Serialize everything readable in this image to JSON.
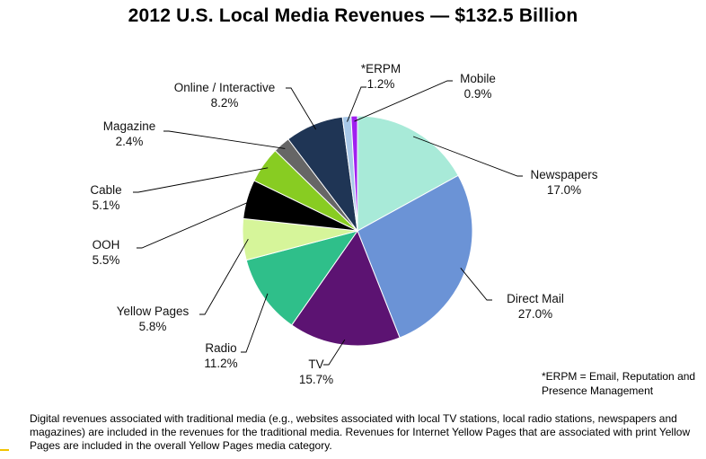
{
  "title": "2012 U.S. Local Media Revenues — $132.5 Billion",
  "footnote": "*ERPM = Email, Reputation and Presence Management",
  "caption": "Digital revenues associated with traditional media (e.g., websites associated with local TV stations, local radio stations, newspapers and magazines) are included in the revenues for the traditional media. Revenues for Internet Yellow Pages that are associated with print Yellow Pages are included in the overall Yellow Pages media category.",
  "chart_data": {
    "type": "pie",
    "title": "2012 U.S. Local Media Revenues — $132.5 Billion",
    "unit": "percent",
    "slices": [
      {
        "name": "Newspapers",
        "value": 17.0,
        "label": "17.0%",
        "color": "#a8ead8"
      },
      {
        "name": "Direct Mail",
        "value": 27.0,
        "label": "27.0%",
        "color": "#6b93d6"
      },
      {
        "name": "TV",
        "value": 15.7,
        "label": "15.7%",
        "color": "#5c1372"
      },
      {
        "name": "Radio",
        "value": 11.2,
        "label": "11.2%",
        "color": "#2fbf8a"
      },
      {
        "name": "Yellow Pages",
        "value": 5.8,
        "label": "5.8%",
        "color": "#d6f59a"
      },
      {
        "name": "OOH",
        "value": 5.5,
        "label": "5.5%",
        "color": "#000000"
      },
      {
        "name": "Cable",
        "value": 5.1,
        "label": "5.1%",
        "color": "#88cc22"
      },
      {
        "name": "Magazine",
        "value": 2.4,
        "label": "2.4%",
        "color": "#666666"
      },
      {
        "name": "Online / Interactive",
        "value": 8.2,
        "label": "8.2%",
        "color": "#1f3555"
      },
      {
        "name": "*ERPM",
        "value": 1.2,
        "label": "1.2%",
        "color": "#a8c8e8"
      },
      {
        "name": "Mobile",
        "value": 0.9,
        "label": "0.9%",
        "color": "#a020f0"
      }
    ]
  }
}
